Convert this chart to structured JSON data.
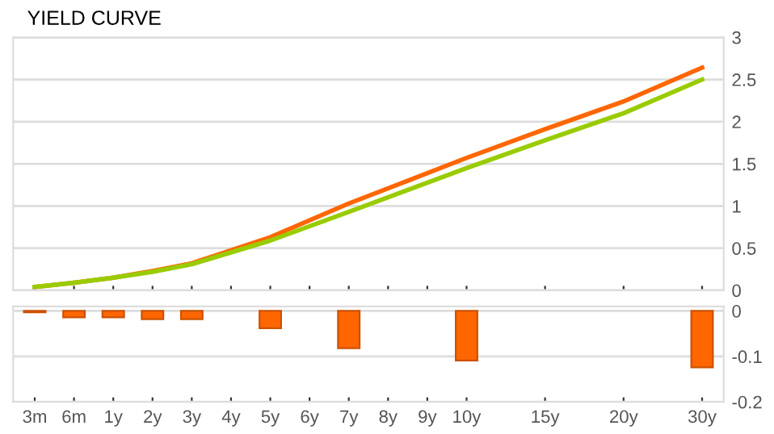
{
  "chart_data": [
    {
      "type": "line",
      "title": "YIELD CURVE",
      "categories": [
        null,
        null,
        null,
        null,
        null,
        null,
        null,
        null,
        null,
        null,
        null,
        null,
        null,
        null,
        null,
        null,
        null,
        null
      ],
      "series": [
        {
          "color": "#ff6600",
          "values": [
            0.04,
            0.09,
            0.15,
            0.23,
            0.32,
            null,
            0.63,
            null,
            1.03,
            null,
            null,
            1.57,
            null,
            1.91,
            null,
            2.24,
            null,
            2.64
          ]
        },
        {
          "color": "#99cc00",
          "values": [
            0.04,
            0.09,
            0.15,
            0.22,
            0.31,
            null,
            0.59,
            null,
            0.93,
            null,
            null,
            1.45,
            null,
            1.78,
            null,
            2.1,
            null,
            2.5
          ]
        }
      ],
      "ylim": [
        0,
        3
      ],
      "yticks": [
        0,
        0.5,
        1,
        1.5,
        2,
        2.5,
        3
      ],
      "grid": "y",
      "tick_labels": "y",
      "legend": false
    },
    {
      "type": "bar",
      "categories": [
        "3m",
        "6m",
        "1y",
        "2y",
        "3y",
        "4y",
        "5y",
        "6y",
        "7y",
        "8y",
        "9y",
        "10y",
        null,
        "15y",
        null,
        "20y",
        null,
        "30y"
      ],
      "series": [
        {
          "color": "#ff6600",
          "values": [
            -0.003,
            -0.014,
            -0.014,
            -0.018,
            -0.018,
            null,
            -0.038,
            null,
            -0.082,
            null,
            null,
            -0.109,
            null,
            null,
            null,
            null,
            null,
            -0.124
          ]
        }
      ],
      "ylim": [
        -0.2,
        0.01
      ],
      "yticks": [
        -0.2,
        -0.1,
        0
      ],
      "grid": "y",
      "legend": false
    }
  ]
}
